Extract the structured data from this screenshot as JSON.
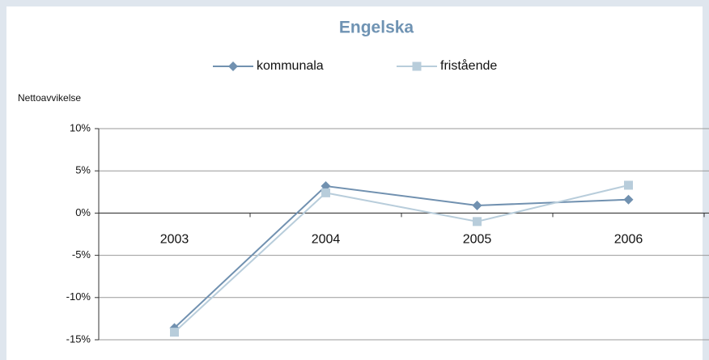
{
  "chart_data": {
    "type": "line",
    "title": "Engelska",
    "y_label": "Nettoavvikelse",
    "categories": [
      "2003",
      "2004",
      "2005",
      "2006"
    ],
    "series": [
      {
        "name": "kommunala",
        "color": "#7191b0",
        "marker": "diamond",
        "values": [
          -13.6,
          3.2,
          0.9,
          1.6
        ]
      },
      {
        "name": "fristående",
        "color": "#b8cddb",
        "marker": "square",
        "values": [
          -14.1,
          2.4,
          -1.0,
          3.3
        ]
      }
    ],
    "ylim": [
      -15,
      10
    ],
    "yticks": [
      {
        "value": -15,
        "label": "-15%"
      },
      {
        "value": -10,
        "label": "-10%"
      },
      {
        "value": -5,
        "label": "-5%"
      },
      {
        "value": 0,
        "label": "0%"
      },
      {
        "value": 5,
        "label": "5%"
      },
      {
        "value": 10,
        "label": "10%"
      }
    ],
    "grid": true,
    "legend": "top"
  }
}
